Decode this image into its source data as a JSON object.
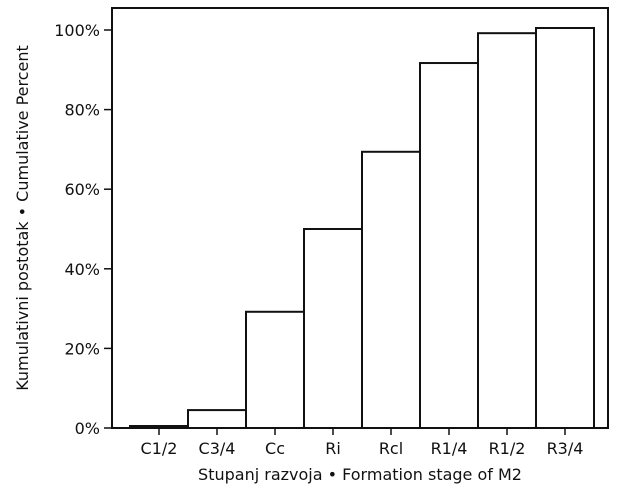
{
  "chart_data": {
    "type": "bar",
    "xlabel": "Stupanj razvoja • Formation stage of M2",
    "ylabel": "Kumulativni postotak • Cumulative Percent",
    "categories": [
      "C1/2",
      "C3/4",
      "Cc",
      "Ri",
      "Rcl",
      "R1/4",
      "R1/2",
      "R3/4"
    ],
    "values": [
      0.5,
      4.5,
      29.2,
      50.0,
      69.4,
      91.7,
      99.2,
      100.5
    ],
    "ylim": [
      0,
      100
    ],
    "yticks": [
      0,
      20,
      40,
      60,
      80,
      100
    ],
    "ytick_labels": [
      "0%",
      "20%",
      "40%",
      "60%",
      "80%",
      "100%"
    ],
    "grid": false,
    "colors": {
      "bar_fill": "#ffffff",
      "bar_stroke": "#111111",
      "frame": "#111111"
    }
  }
}
